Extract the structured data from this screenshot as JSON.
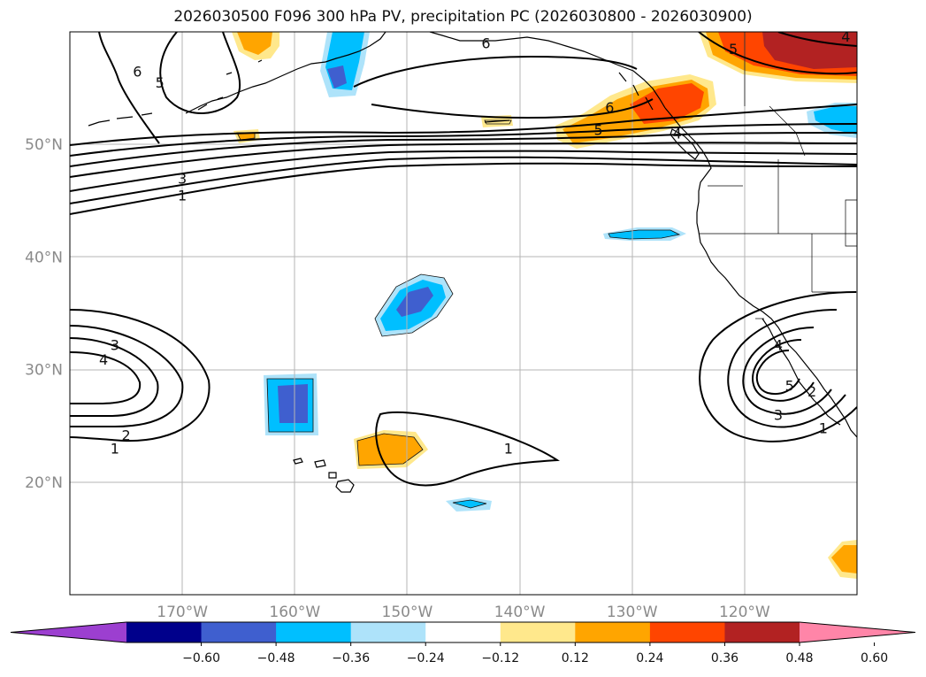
{
  "title": "2026030500 F096 300 hPa PV, precipitation PC (2026030800 - 2026030900)",
  "map": {
    "extent": {
      "lon_min": -180,
      "lon_max": -110,
      "lat_min": 10,
      "lat_max": 60
    },
    "lat_ticks": [
      {
        "value": 20,
        "label": "20°N"
      },
      {
        "value": 30,
        "label": "30°N"
      },
      {
        "value": 40,
        "label": "40°N"
      },
      {
        "value": 50,
        "label": "50°N"
      }
    ],
    "lon_ticks": [
      {
        "value": -170,
        "label": "170°W"
      },
      {
        "value": -160,
        "label": "160°W"
      },
      {
        "value": -150,
        "label": "150°W"
      },
      {
        "value": -140,
        "label": "140°W"
      },
      {
        "value": -130,
        "label": "130°W"
      },
      {
        "value": -120,
        "label": "120°W"
      }
    ],
    "grid": true,
    "gridline_color": "#b5b5b5"
  },
  "colorbar": {
    "orientation": "horizontal",
    "extend": "both",
    "colors": [
      "#9c3fd0",
      "#00008b",
      "#3f5fcf",
      "#00bfff",
      "#aee3fa",
      "#ffffff",
      "#ffe88c",
      "#ffa500",
      "#ff4500",
      "#b22222",
      "#ff85a8"
    ],
    "ticks": [
      "−0.60",
      "−0.48",
      "−0.36",
      "−0.24",
      "−0.12",
      "0.12",
      "0.24",
      "0.36",
      "0.48",
      "0.60"
    ]
  },
  "pv_contour_labels": [
    {
      "text": "6",
      "lon": -174,
      "lat": 56.5
    },
    {
      "text": "5",
      "lon": -172,
      "lat": 55.5
    },
    {
      "text": "3",
      "lon": -170,
      "lat": 47.0
    },
    {
      "text": "1",
      "lon": -170,
      "lat": 45.5
    },
    {
      "text": "6",
      "lon": -143,
      "lat": 59.0
    },
    {
      "text": "6",
      "lon": -132,
      "lat": 53.3
    },
    {
      "text": "5",
      "lon": -133,
      "lat": 51.3
    },
    {
      "text": "4",
      "lon": -126,
      "lat": 51.0
    },
    {
      "text": "5",
      "lon": -121,
      "lat": 58.5
    },
    {
      "text": "4",
      "lon": -111,
      "lat": 59.6
    },
    {
      "text": "3",
      "lon": -176,
      "lat": 32.2
    },
    {
      "text": "4",
      "lon": -177,
      "lat": 30.9
    },
    {
      "text": "2",
      "lon": -175,
      "lat": 24.2
    },
    {
      "text": "1",
      "lon": -176,
      "lat": 23.0
    },
    {
      "text": "1",
      "lon": -141,
      "lat": 23.0
    },
    {
      "text": "4",
      "lon": -117,
      "lat": 32.2
    },
    {
      "text": "5",
      "lon": -116,
      "lat": 28.6
    },
    {
      "text": "2",
      "lon": -114,
      "lat": 28.1
    },
    {
      "text": "3",
      "lon": -117,
      "lat": 26.0
    },
    {
      "text": "1",
      "lon": -113,
      "lat": 24.8
    }
  ]
}
